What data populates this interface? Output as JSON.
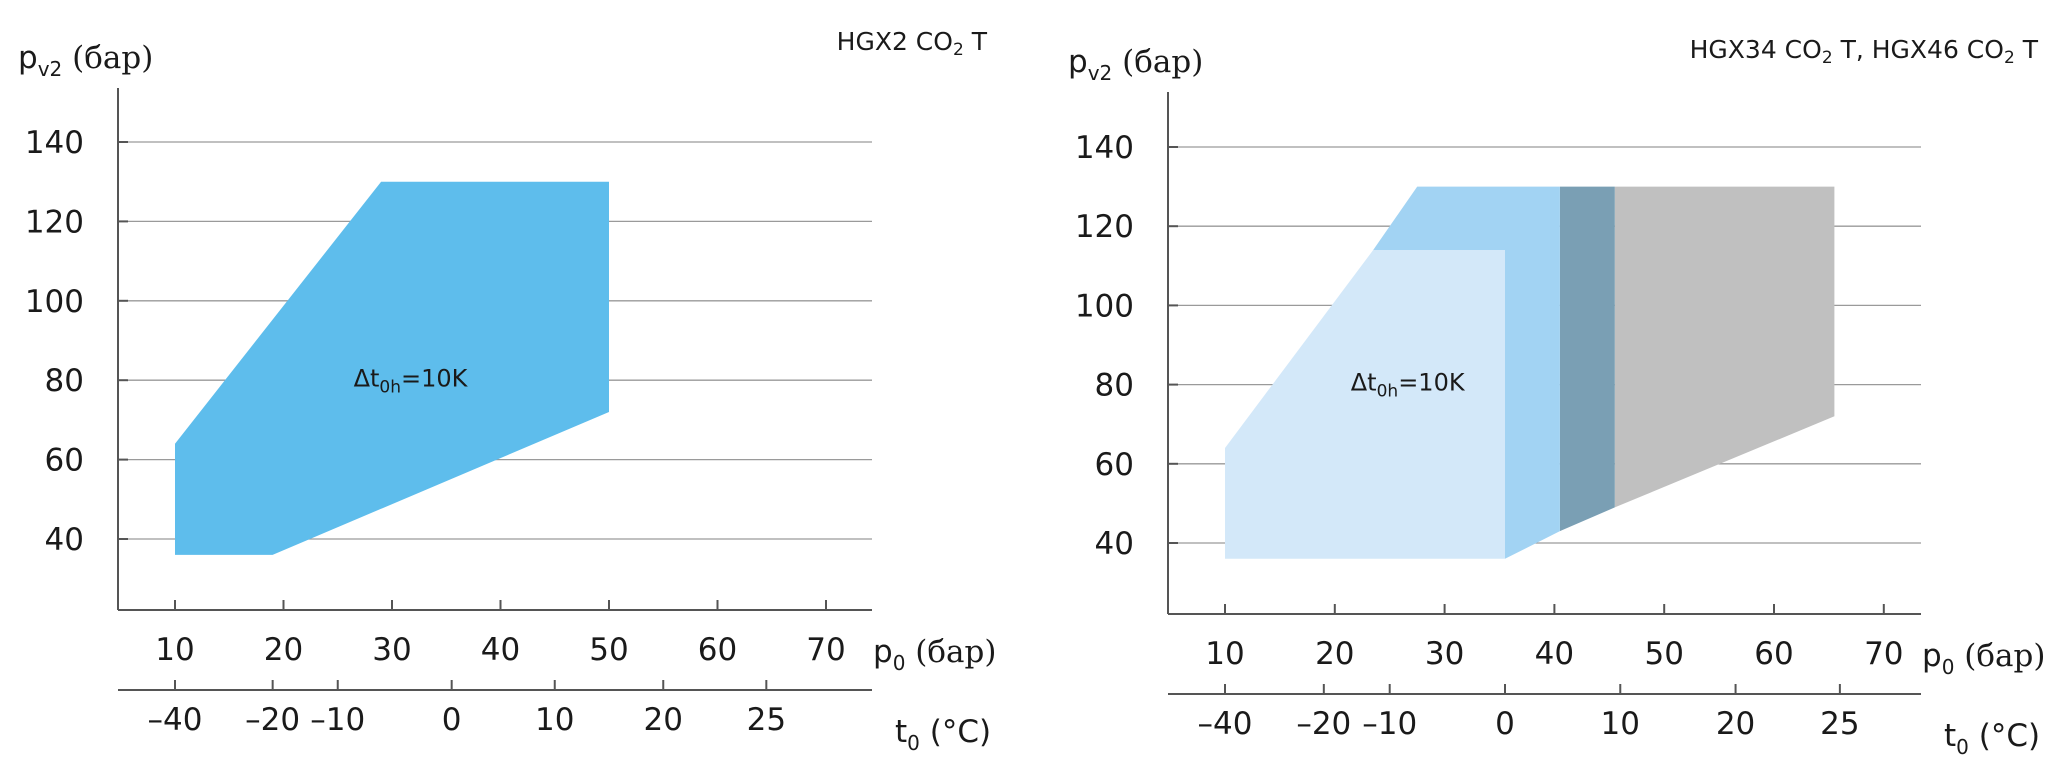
{
  "chart_data": [
    {
      "type": "area",
      "title": "HGX2 CO",
      "title_sub": "2",
      "title_end": " T",
      "ylabel": {
        "main": "p",
        "sub": "v2",
        "unit": " (бар)"
      },
      "xlabel": {
        "main": "p",
        "sub": "0",
        "unit": " (бар)"
      },
      "x2label": {
        "main": "t",
        "sub": "0",
        "unit": " (°C)"
      },
      "ylim": [
        22,
        153
      ],
      "xlim": [
        5,
        74
      ],
      "yticks": [
        "40",
        "60",
        "80",
        "100",
        "120",
        "140"
      ],
      "xticks": [
        "10",
        "20",
        "30",
        "40",
        "50",
        "60",
        "70"
      ],
      "x2ticks": [
        {
          "p": 10,
          "label": "–40"
        },
        {
          "p": 19,
          "label": "–20"
        },
        {
          "p": 25,
          "label": "–10"
        },
        {
          "p": 35.5,
          "label": "0"
        },
        {
          "p": 45,
          "label": "10"
        },
        {
          "p": 55,
          "label": "20"
        },
        {
          "p": 64.5,
          "label": "25"
        }
      ],
      "annotation": {
        "text": "Δt",
        "sub": "0h",
        "end": "=10K",
        "p": 26,
        "pv2": 82
      },
      "series": [
        {
          "name": "envelope",
          "color": "#5ebdec",
          "points": [
            [
              10,
              36
            ],
            [
              19,
              36
            ],
            [
              50,
              72
            ],
            [
              50,
              130
            ],
            [
              29,
              130
            ],
            [
              10,
              64
            ]
          ]
        }
      ]
    },
    {
      "type": "area",
      "title": "HGX34 CO",
      "title_sub": "2",
      "title_end": " T, HGX46 CO",
      "title_sub2": "2",
      "title_end2": " T",
      "ylabel": {
        "main": "p",
        "sub": "v2",
        "unit": " (бар)"
      },
      "xlabel": {
        "main": "p",
        "sub": "0",
        "unit": " (бар)"
      },
      "x2label": {
        "main": "t",
        "sub": "0",
        "unit": " (°C)"
      },
      "ylim": [
        22,
        153
      ],
      "xlim": [
        5,
        74
      ],
      "yticks": [
        "40",
        "60",
        "80",
        "100",
        "120",
        "140"
      ],
      "xticks": [
        "10",
        "20",
        "30",
        "40",
        "50",
        "60",
        "70"
      ],
      "x2ticks": [
        {
          "p": 10,
          "label": "–40"
        },
        {
          "p": 19,
          "label": "–20"
        },
        {
          "p": 25,
          "label": "–10"
        },
        {
          "p": 35.5,
          "label": "0"
        },
        {
          "p": 46,
          "label": "10"
        },
        {
          "p": 56.5,
          "label": "20"
        },
        {
          "p": 66,
          "label": "25"
        }
      ],
      "annotation": {
        "text": "Δt",
        "sub": "0h",
        "end": "=10K",
        "p": 21,
        "pv2": 82
      },
      "series": [
        {
          "name": "grey-extension",
          "color": "#c0c0c0",
          "points": [
            [
              45.5,
              49
            ],
            [
              65.5,
              72
            ],
            [
              65.5,
              130
            ],
            [
              45.5,
              130
            ]
          ]
        },
        {
          "name": "dark-band",
          "color": "#7a9fb4",
          "points": [
            [
              40.5,
              43
            ],
            [
              45.5,
              49
            ],
            [
              45.5,
              130
            ],
            [
              40.5,
              130
            ]
          ]
        },
        {
          "name": "mid-blue",
          "color": "#a2d3f3",
          "points": [
            [
              35.5,
              36
            ],
            [
              40.5,
              43
            ],
            [
              40.5,
              130
            ],
            [
              27.5,
              130
            ],
            [
              23.5,
              114
            ],
            [
              35.5,
              114
            ]
          ]
        },
        {
          "name": "light-blue",
          "color": "#d3e8f9",
          "points": [
            [
              10,
              36
            ],
            [
              35.5,
              36
            ],
            [
              35.5,
              114
            ],
            [
              23.5,
              114
            ],
            [
              10,
              64
            ]
          ]
        }
      ]
    }
  ]
}
